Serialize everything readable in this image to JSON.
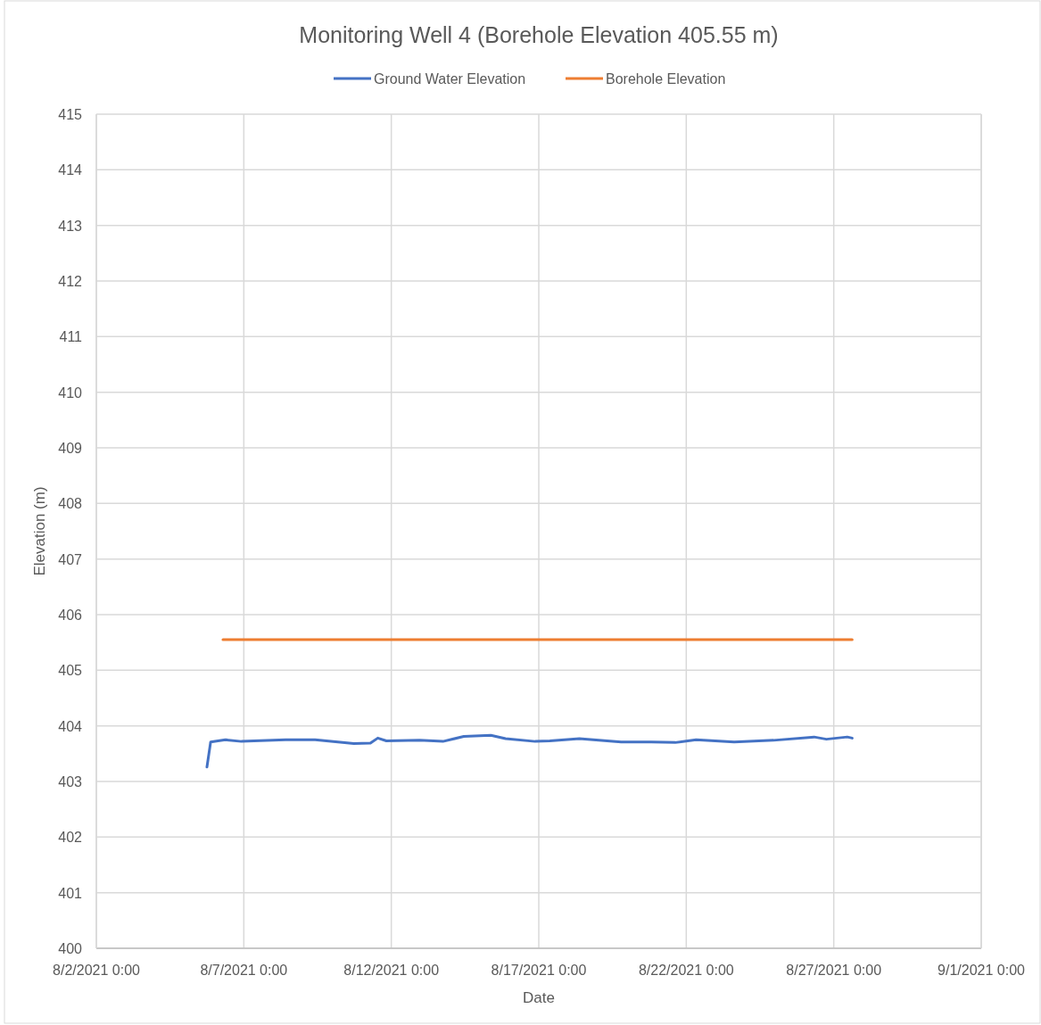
{
  "chart_data": {
    "type": "line",
    "title": "Monitoring Well 4 (Borehole Elevation 405.55 m)",
    "xlabel": "Date",
    "ylabel": "Elevation (m)",
    "series": [
      {
        "name": "Ground Water Elevation",
        "color": "#4472c4",
        "x": [
          "2021-08-05T18:00",
          "2021-08-05T21:00",
          "2021-08-06T09:00",
          "2021-08-06T22:00",
          "2021-08-08T10:00",
          "2021-08-09T10:00",
          "2021-08-10T17:30",
          "2021-08-11T07:00",
          "2021-08-11T13:00",
          "2021-08-11T20:00",
          "2021-08-12T23:00",
          "2021-08-13T18:00",
          "2021-08-14T11:00",
          "2021-08-15T09:00",
          "2021-08-15T21:00",
          "2021-08-16T21:00",
          "2021-08-17T09:00",
          "2021-08-18T09:00",
          "2021-08-19T19:00",
          "2021-08-20T19:30",
          "2021-08-21T15:00",
          "2021-08-22T08:00",
          "2021-08-23T15:00",
          "2021-08-24T23:00",
          "2021-08-26T08:00",
          "2021-08-26T18:00",
          "2021-08-27T11:00",
          "2021-08-27T15:00"
        ],
        "values": [
          403.26,
          403.71,
          403.75,
          403.72,
          403.75,
          403.75,
          403.68,
          403.69,
          403.78,
          403.73,
          403.74,
          403.72,
          403.81,
          403.83,
          403.77,
          403.72,
          403.73,
          403.77,
          403.71,
          403.71,
          403.7,
          403.75,
          403.71,
          403.74,
          403.8,
          403.76,
          403.8,
          403.78
        ]
      },
      {
        "name": "Borehole Elevation",
        "color": "#ed7d31",
        "x": [
          "2021-08-06T07:00",
          "2021-08-27T15:00"
        ],
        "values": [
          405.55,
          405.55
        ]
      }
    ],
    "xlim": [
      "2021-08-02T00:00",
      "2021-09-01T00:00"
    ],
    "xticks": [
      {
        "value": "2021-08-02T00:00",
        "label": "8/2/2021 0:00"
      },
      {
        "value": "2021-08-07T00:00",
        "label": "8/7/2021 0:00"
      },
      {
        "value": "2021-08-12T00:00",
        "label": "8/12/2021 0:00"
      },
      {
        "value": "2021-08-17T00:00",
        "label": "8/17/2021 0:00"
      },
      {
        "value": "2021-08-22T00:00",
        "label": "8/22/2021 0:00"
      },
      {
        "value": "2021-08-27T00:00",
        "label": "8/27/2021 0:00"
      },
      {
        "value": "2021-09-01T00:00",
        "label": "9/1/2021 0:00"
      }
    ],
    "ylim": [
      400,
      415
    ],
    "yticks": [
      400,
      401,
      402,
      403,
      404,
      405,
      406,
      407,
      408,
      409,
      410,
      411,
      412,
      413,
      414,
      415
    ],
    "grid": true,
    "legend": "top",
    "marker": "none",
    "line_style": "solid"
  }
}
